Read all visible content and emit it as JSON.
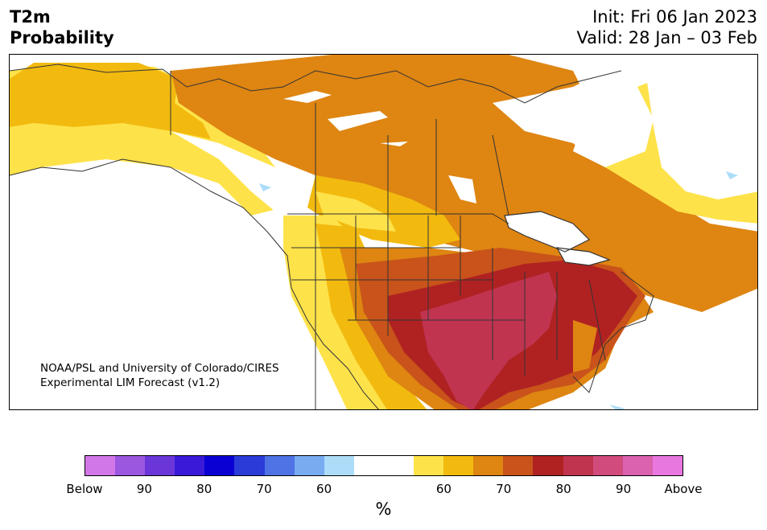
{
  "header": {
    "title_line1": "T2m",
    "title_line2": "Probability",
    "init": "Init: Fri 06 Jan 2023",
    "valid": "Valid: 28 Jan – 03 Feb"
  },
  "credit": {
    "line1": "NOAA/PSL and University of Colorado/CIRES",
    "line2": "Experimental LIM Forecast (v1.2)"
  },
  "colorbar": {
    "colors": [
      "#d277e8",
      "#9b57e0",
      "#6a36d8",
      "#3a1ad8",
      "#0a00d4",
      "#2a3bd8",
      "#4f73e4",
      "#77acf0",
      "#acdcf8",
      "#ffffff",
      "#ffffff",
      "#fee24a",
      "#f2ba0f",
      "#de8512",
      "#c9531a",
      "#b02222",
      "#c03450",
      "#d14b7c",
      "#da62ae",
      "#e877e0"
    ],
    "tick_labels": [
      "Below",
      "90",
      "80",
      "70",
      "60",
      "60",
      "70",
      "80",
      "90",
      "Above"
    ],
    "unit": "%"
  },
  "legend_categories": {
    "below_normal": [
      "Below",
      "90",
      "80",
      "70",
      "60"
    ],
    "above_normal": [
      "60",
      "70",
      "80",
      "90",
      "Above"
    ]
  }
}
